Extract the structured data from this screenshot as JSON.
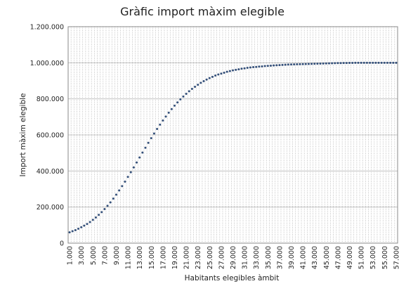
{
  "chart_data": {
    "type": "scatter",
    "title": "Gràfic import màxim elegible",
    "xlabel": "Habitants elegibles àmbit",
    "ylabel": "Import màxim elegible",
    "ylim": [
      0,
      1200000
    ],
    "y_ticks": [
      0,
      200000,
      400000,
      600000,
      800000,
      1000000,
      1200000
    ],
    "y_tick_labels": [
      "0",
      "200.000",
      "400.000",
      "600.000",
      "800.000",
      "1.000.000",
      "1.200.000"
    ],
    "x_tick_labels": [
      "1.000",
      "3.000",
      "5.000",
      "7.000",
      "9.000",
      "11.000",
      "13.000",
      "15.000",
      "17.000",
      "19.000",
      "21.000",
      "23.000",
      "25.000",
      "27.000",
      "29.000",
      "31.000",
      "33.000",
      "35.000",
      "37.000",
      "39.000",
      "41.000",
      "43.000",
      "45.000",
      "47.000",
      "49.000",
      "51.000",
      "53.000",
      "55.000",
      "57.000"
    ],
    "x_start": 1000,
    "x_step": 500,
    "grid": true,
    "series": [
      {
        "color": "#34507a",
        "values": [
          60000,
          66000,
          72000,
          80000,
          88000,
          97000,
          106000,
          117000,
          129000,
          142000,
          157000,
          172000,
          189000,
          207000,
          226000,
          247000,
          269000,
          292000,
          316000,
          341000,
          367000,
          393000,
          420000,
          447000,
          475000,
          502000,
          529000,
          556000,
          582000,
          608000,
          633000,
          657000,
          680000,
          702000,
          723000,
          743000,
          762000,
          780000,
          797000,
          813000,
          828000,
          842000,
          855000,
          867000,
          878000,
          889000,
          898000,
          907000,
          915000,
          922000,
          929000,
          935000,
          940000,
          945000,
          950000,
          954000,
          958000,
          961000,
          964000,
          967000,
          969000,
          972000,
          974000,
          976000,
          977000,
          979000,
          980000,
          982000,
          983000,
          984000,
          985000,
          986000,
          987000,
          988000,
          989000,
          990000,
          990500,
          991000,
          991500,
          992000,
          992500,
          993000,
          993500,
          994000,
          994500,
          995000,
          995500,
          996000,
          996500,
          997000,
          997500,
          998000,
          998300,
          998600,
          998900,
          999100,
          999300,
          999500,
          999600,
          999700,
          999800,
          999800,
          999900,
          999900,
          999900,
          1000000,
          1000000,
          1000000,
          1000000,
          1000000,
          1000000,
          1000000,
          1000000
        ]
      }
    ]
  }
}
